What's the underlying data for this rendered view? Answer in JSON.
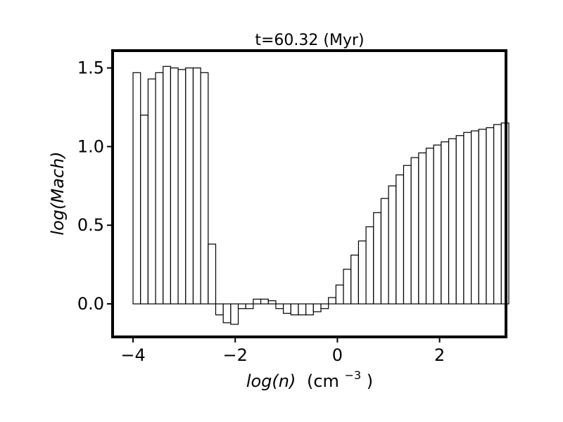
{
  "chart_data": {
    "type": "bar",
    "title": "t=60.32 (Myr)",
    "xlabel": {
      "var": "log(n)",
      "unit": "(cm",
      "exp": "−3",
      "close": ")"
    },
    "ylabel": "log(Mach)",
    "xlim": [
      -4.4,
      3.3
    ],
    "ylim": [
      -0.21,
      1.61
    ],
    "xticks": [
      {
        "value": -4,
        "label": "−4"
      },
      {
        "value": -2,
        "label": "−2"
      },
      {
        "value": 0,
        "label": "0"
      },
      {
        "value": 2,
        "label": "2"
      }
    ],
    "yticks": [
      {
        "value": 0.0,
        "label": "0.0"
      },
      {
        "value": 0.5,
        "label": "0.5"
      },
      {
        "value": 1.0,
        "label": "1.0"
      },
      {
        "value": 1.5,
        "label": "1.5"
      }
    ],
    "bin_width": 0.1471,
    "bin_start": -4.0,
    "values": [
      1.47,
      1.2,
      1.43,
      1.47,
      1.51,
      1.5,
      1.49,
      1.5,
      1.5,
      1.47,
      0.38,
      -0.07,
      -0.12,
      -0.13,
      -0.03,
      -0.03,
      0.03,
      0.03,
      0.02,
      -0.03,
      -0.06,
      -0.07,
      -0.07,
      -0.07,
      -0.05,
      -0.03,
      0.04,
      0.12,
      0.22,
      0.31,
      0.4,
      0.49,
      0.58,
      0.67,
      0.75,
      0.82,
      0.88,
      0.93,
      0.96,
      0.99,
      1.01,
      1.03,
      1.05,
      1.07,
      1.09,
      1.1,
      1.11,
      1.12,
      1.14,
      1.15
    ],
    "grid": false,
    "legend": "none"
  }
}
